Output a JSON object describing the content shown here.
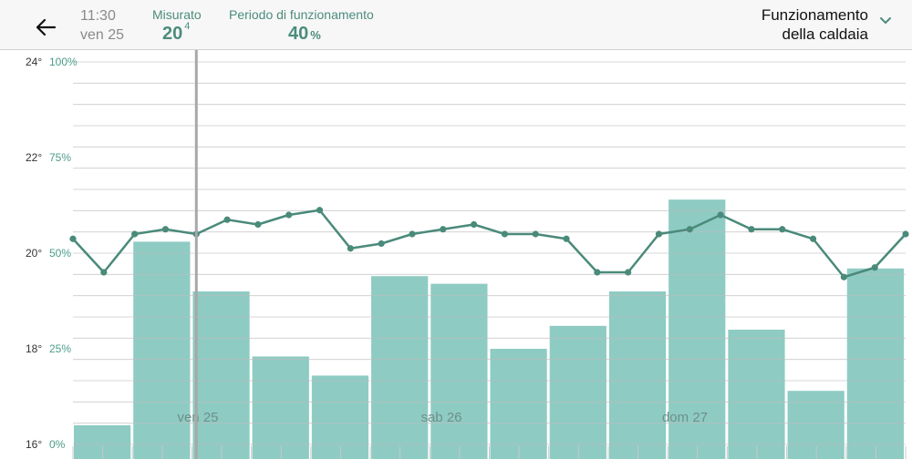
{
  "header": {
    "time": "11:30",
    "date": "ven 25",
    "measured": {
      "label": "Misurato",
      "value": "20",
      "decimal": "4"
    },
    "period": {
      "label": "Periodo di funzionamento",
      "value": "40",
      "unit": "%"
    },
    "selector": {
      "line1": "Funzionamento",
      "line2": "della caldaia"
    },
    "back_icon": "arrow-left-icon",
    "selector_icon": "chevron-down-icon"
  },
  "chart_data": {
    "type": "bar",
    "description_type": "bar + line combo",
    "temp_axis": {
      "ticks": [
        "24°",
        "22°",
        "20°",
        "18°",
        "16°"
      ],
      "values": [
        24,
        22,
        20,
        18,
        16
      ],
      "range": [
        16,
        24
      ]
    },
    "percent_axis": {
      "ticks": [
        "100%",
        "75%",
        "50%",
        "25%",
        "0%"
      ],
      "values": [
        100,
        75,
        50,
        25,
        0
      ],
      "range": [
        0,
        100
      ]
    },
    "day_labels": [
      "ven 25",
      "sab 26",
      "dom 27"
    ],
    "series": [
      {
        "kind": "bar",
        "values": [
          5,
          53,
          40,
          23,
          18,
          44,
          42,
          25,
          31,
          40,
          64,
          30,
          14,
          46
        ]
      },
      {
        "kind": "line",
        "values": [
          20.3,
          19.6,
          20.4,
          20.5,
          20.4,
          20.7,
          20.6,
          20.8,
          20.9,
          20.1,
          20.2,
          20.4,
          20.5,
          20.6,
          20.4,
          20.4,
          20.3,
          19.6,
          19.6,
          20.4,
          20.5,
          20.8,
          20.5,
          20.5,
          20.3,
          19.5,
          19.7,
          20.4
        ]
      }
    ],
    "current_marker_index": 4,
    "grid": true,
    "colors": {
      "bar": "#8ecbc3",
      "line": "#4a8a7a",
      "marker": "#a8a8a8",
      "axis_text": "#333333",
      "percent_text": "#4c9c8a"
    }
  }
}
